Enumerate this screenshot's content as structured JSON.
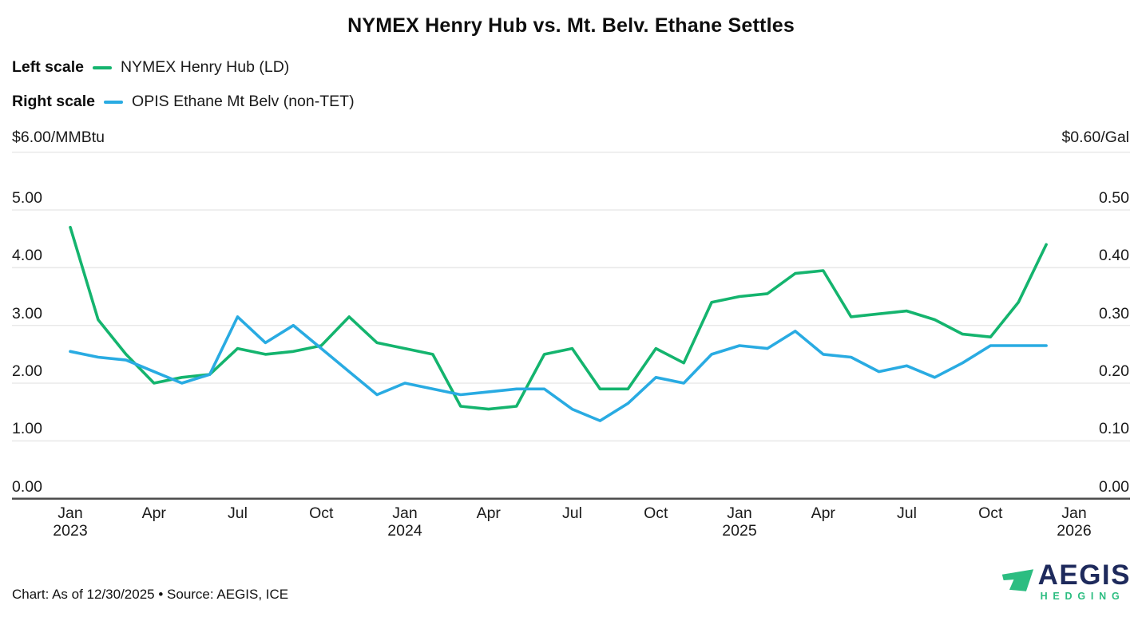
{
  "title": "NYMEX Henry Hub vs. Mt. Belv. Ethane Settles",
  "legend": {
    "rows": [
      {
        "scale_label": "Left scale",
        "series_label": "NYMEX Henry Hub (LD)",
        "color": "#14b46e"
      },
      {
        "scale_label": "Right scale",
        "series_label": "OPIS Ethane Mt Belv (non-TET)",
        "color": "#29abe2"
      }
    ]
  },
  "axes": {
    "left_caption": "$6.00/MMBtu",
    "right_caption": "$0.60/Gal",
    "left_ticks": [
      "5.00",
      "4.00",
      "3.00",
      "2.00",
      "1.00",
      "0.00"
    ],
    "right_ticks": [
      "0.50",
      "0.40",
      "0.30",
      "0.20",
      "0.10",
      "0.00"
    ],
    "x_ticks": [
      {
        "month": "Jan",
        "year": "2023",
        "month_index": 0
      },
      {
        "month": "Apr",
        "month_index": 3
      },
      {
        "month": "Jul",
        "month_index": 6
      },
      {
        "month": "Oct",
        "month_index": 9
      },
      {
        "month": "Jan",
        "year": "2024",
        "month_index": 12
      },
      {
        "month": "Apr",
        "month_index": 15
      },
      {
        "month": "Jul",
        "month_index": 18
      },
      {
        "month": "Oct",
        "month_index": 21
      },
      {
        "month": "Jan",
        "year": "2025",
        "month_index": 24
      },
      {
        "month": "Apr",
        "month_index": 27
      },
      {
        "month": "Jul",
        "month_index": 30
      },
      {
        "month": "Oct",
        "month_index": 33
      },
      {
        "month": "Jan",
        "year": "2026",
        "month_index": 36
      }
    ]
  },
  "chart_data": {
    "type": "line",
    "title": "NYMEX Henry Hub vs. Mt. Belv. Ethane Settles",
    "grid": true,
    "legend_position": "top-left",
    "x_unit": "month",
    "x": [
      "2023-01",
      "2023-02",
      "2023-03",
      "2023-04",
      "2023-05",
      "2023-06",
      "2023-07",
      "2023-08",
      "2023-09",
      "2023-10",
      "2023-11",
      "2023-12",
      "2024-01",
      "2024-02",
      "2024-03",
      "2024-04",
      "2024-05",
      "2024-06",
      "2024-07",
      "2024-08",
      "2024-09",
      "2024-10",
      "2024-11",
      "2024-12",
      "2025-01",
      "2025-02",
      "2025-03",
      "2025-04",
      "2025-05",
      "2025-06",
      "2025-07",
      "2025-08",
      "2025-09",
      "2025-10",
      "2025-11",
      "2025-12"
    ],
    "x_axis_end": "2026-01",
    "left_axis": {
      "label": "$/MMBtu",
      "min": 0,
      "max": 6,
      "step": 1
    },
    "right_axis": {
      "label": "$/Gal",
      "min": 0,
      "max": 0.6,
      "step": 0.1
    },
    "series": [
      {
        "name": "NYMEX Henry Hub (LD)",
        "axis": "left",
        "unit": "$/MMBtu",
        "color": "#14b46e",
        "values": [
          4.7,
          3.1,
          2.5,
          2.0,
          2.1,
          2.15,
          2.6,
          2.5,
          2.55,
          2.65,
          3.15,
          2.7,
          2.6,
          2.5,
          1.6,
          1.55,
          1.6,
          2.5,
          2.6,
          1.9,
          1.9,
          2.6,
          2.35,
          3.4,
          3.5,
          3.55,
          3.9,
          3.95,
          3.15,
          3.2,
          3.25,
          3.1,
          2.85,
          2.8,
          3.4,
          4.4
        ]
      },
      {
        "name": "OPIS Ethane Mt Belv (non-TET)",
        "axis": "right",
        "unit": "$/Gal",
        "color": "#29abe2",
        "values": [
          0.255,
          0.245,
          0.24,
          0.22,
          0.2,
          0.215,
          0.315,
          0.27,
          0.3,
          0.26,
          0.22,
          0.18,
          0.2,
          0.19,
          0.18,
          0.185,
          0.19,
          0.19,
          0.155,
          0.135,
          0.165,
          0.21,
          0.2,
          0.25,
          0.265,
          0.26,
          0.29,
          0.25,
          0.245,
          0.22,
          0.23,
          0.21,
          0.235,
          0.265,
          0.265,
          0.265
        ]
      }
    ]
  },
  "footer": {
    "caption": "Chart: As of 12/30/2025 • Source: AEGIS, ICE"
  },
  "logo": {
    "word": "AEGIS",
    "sub": "HEDGING",
    "navy": "#1e2a5c",
    "green": "#2cbd81"
  }
}
